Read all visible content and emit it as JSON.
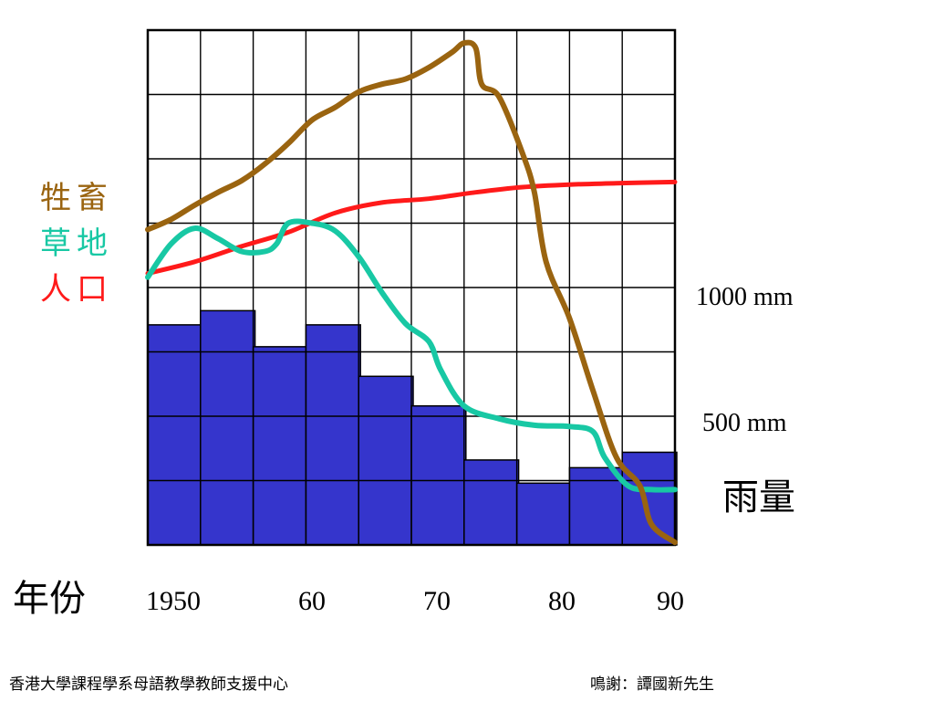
{
  "chart_data": {
    "type": "bar",
    "x_tick_labels": [
      "1950",
      "60",
      "70",
      "80",
      "90"
    ],
    "rainfall_bars": [
      {
        "year": 1949,
        "value": 855
      },
      {
        "year": 1953,
        "value": 910
      },
      {
        "year": 1957,
        "value": 770
      },
      {
        "year": 1961,
        "value": 855
      },
      {
        "year": 1965,
        "value": 655
      },
      {
        "year": 1969,
        "value": 540
      },
      {
        "year": 1973,
        "value": 330
      },
      {
        "year": 1977,
        "value": 240
      },
      {
        "year": 1981,
        "value": 300
      },
      {
        "year": 1985,
        "value": 360
      }
    ],
    "rainfall_reference_labels": [
      {
        "value": 1000,
        "text": "1000 mm"
      },
      {
        "value": 500,
        "text": "500 mm"
      }
    ],
    "rainfall_label": "雨量",
    "xlabel": "年份",
    "series": [
      {
        "name": "牲畜",
        "color": "#9a6410",
        "points": [
          [
            1945,
            1225
          ],
          [
            1947,
            1265
          ],
          [
            1949,
            1320
          ],
          [
            1951,
            1370
          ],
          [
            1953,
            1415
          ],
          [
            1955,
            1480
          ],
          [
            1957,
            1560
          ],
          [
            1959,
            1650
          ],
          [
            1961,
            1700
          ],
          [
            1963,
            1760
          ],
          [
            1965,
            1790
          ],
          [
            1967,
            1810
          ],
          [
            1969,
            1855
          ],
          [
            1971,
            1915
          ],
          [
            1972,
            1950
          ],
          [
            1973,
            1930
          ],
          [
            1973.5,
            1790
          ],
          [
            1975,
            1740
          ],
          [
            1977,
            1520
          ],
          [
            1978,
            1370
          ],
          [
            1979,
            1100
          ],
          [
            1981,
            880
          ],
          [
            1983,
            600
          ],
          [
            1985,
            340
          ],
          [
            1987,
            230
          ],
          [
            1988,
            80
          ],
          [
            1990,
            10
          ]
        ]
      },
      {
        "name": "草地",
        "color": "#18c8a4",
        "points": [
          [
            1945,
            1040
          ],
          [
            1947,
            1170
          ],
          [
            1949,
            1230
          ],
          [
            1951,
            1190
          ],
          [
            1953,
            1140
          ],
          [
            1955,
            1140
          ],
          [
            1956,
            1170
          ],
          [
            1957,
            1250
          ],
          [
            1959,
            1250
          ],
          [
            1961,
            1220
          ],
          [
            1963,
            1120
          ],
          [
            1965,
            980
          ],
          [
            1967,
            860
          ],
          [
            1969,
            790
          ],
          [
            1970,
            680
          ],
          [
            1972,
            540
          ],
          [
            1975,
            490
          ],
          [
            1978,
            465
          ],
          [
            1981,
            460
          ],
          [
            1983,
            440
          ],
          [
            1984,
            340
          ],
          [
            1986,
            230
          ],
          [
            1988,
            215
          ],
          [
            1990,
            215
          ]
        ]
      },
      {
        "name": "人口",
        "color": "#ff1a1a",
        "points": [
          [
            1945,
            1055
          ],
          [
            1949,
            1100
          ],
          [
            1953,
            1160
          ],
          [
            1957,
            1215
          ],
          [
            1961,
            1290
          ],
          [
            1965,
            1330
          ],
          [
            1969,
            1345
          ],
          [
            1973,
            1370
          ],
          [
            1977,
            1390
          ],
          [
            1981,
            1400
          ],
          [
            1985,
            1405
          ],
          [
            1990,
            1410
          ]
        ]
      }
    ],
    "x_range": [
      1945,
      1990
    ],
    "y_range": [
      0,
      2000
    ],
    "grid": true,
    "legend_position": "left"
  },
  "footer": {
    "left": "香港大學課程學系母語教學教師支援中心",
    "right": "鳴謝：譚國新先生"
  }
}
